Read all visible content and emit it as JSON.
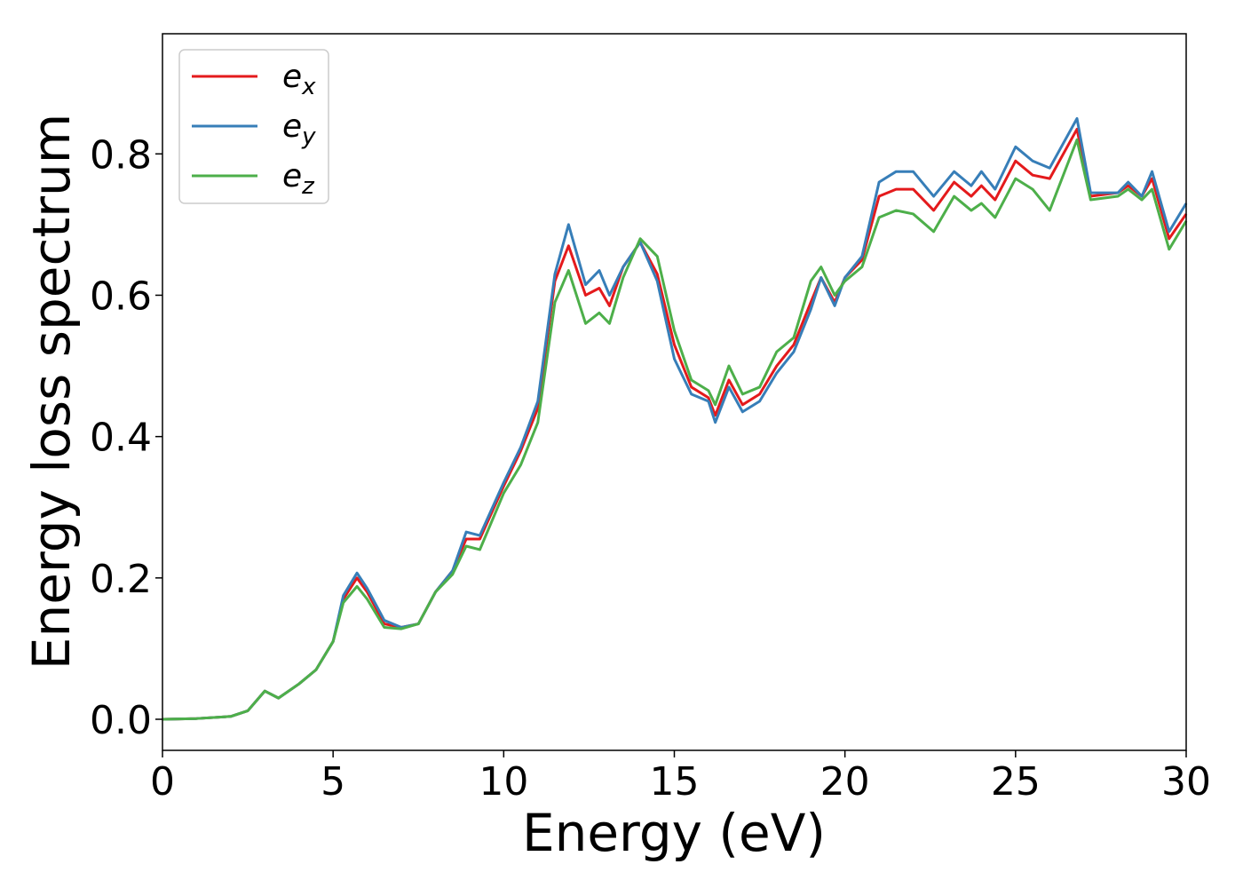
{
  "chart_data": {
    "type": "line",
    "xlabel": "Energy (eV)",
    "ylabel": "Energy loss spectrum",
    "x": [
      0,
      1,
      2,
      2.5,
      3,
      3.4,
      4,
      4.5,
      5,
      5.3,
      5.7,
      6,
      6.5,
      7,
      7.5,
      8,
      8.5,
      8.9,
      9.3,
      10,
      10.5,
      11,
      11.5,
      11.9,
      12.4,
      12.8,
      13.1,
      13.5,
      14,
      14.5,
      15,
      15.5,
      16,
      16.2,
      16.6,
      17,
      17.5,
      18,
      18.5,
      19,
      19.3,
      19.7,
      20,
      20.5,
      21,
      21.5,
      22,
      22.6,
      23.2,
      23.7,
      24,
      24.4,
      25,
      25.5,
      26,
      26.8,
      27.2,
      28,
      28.3,
      28.7,
      29,
      29.5,
      30
    ],
    "series": [
      {
        "name": "ex",
        "color": "#e41a1c",
        "values": [
          0,
          0.001,
          0.004,
          0.012,
          0.04,
          0.03,
          0.05,
          0.07,
          0.11,
          0.17,
          0.2,
          0.18,
          0.135,
          0.13,
          0.135,
          0.18,
          0.21,
          0.255,
          0.255,
          0.33,
          0.38,
          0.44,
          0.62,
          0.67,
          0.6,
          0.61,
          0.585,
          0.64,
          0.675,
          0.63,
          0.53,
          0.47,
          0.455,
          0.43,
          0.48,
          0.445,
          0.46,
          0.5,
          0.53,
          0.59,
          0.625,
          0.59,
          0.625,
          0.65,
          0.74,
          0.75,
          0.75,
          0.72,
          0.76,
          0.74,
          0.755,
          0.735,
          0.79,
          0.77,
          0.765,
          0.835,
          0.74,
          0.745,
          0.755,
          0.74,
          0.765,
          0.68,
          0.715
        ]
      },
      {
        "name": "ey",
        "color": "#377eb8",
        "values": [
          0,
          0.001,
          0.004,
          0.012,
          0.04,
          0.03,
          0.05,
          0.07,
          0.11,
          0.175,
          0.207,
          0.185,
          0.14,
          0.13,
          0.135,
          0.18,
          0.21,
          0.265,
          0.26,
          0.335,
          0.385,
          0.45,
          0.63,
          0.7,
          0.615,
          0.635,
          0.6,
          0.64,
          0.675,
          0.62,
          0.51,
          0.46,
          0.45,
          0.42,
          0.47,
          0.435,
          0.45,
          0.49,
          0.52,
          0.58,
          0.625,
          0.585,
          0.625,
          0.655,
          0.76,
          0.775,
          0.775,
          0.74,
          0.775,
          0.755,
          0.775,
          0.75,
          0.81,
          0.79,
          0.78,
          0.85,
          0.745,
          0.745,
          0.76,
          0.74,
          0.775,
          0.69,
          0.73
        ]
      },
      {
        "name": "ez",
        "color": "#4daf4a",
        "values": [
          0,
          0.001,
          0.004,
          0.012,
          0.04,
          0.03,
          0.05,
          0.07,
          0.11,
          0.165,
          0.188,
          0.17,
          0.13,
          0.128,
          0.135,
          0.18,
          0.205,
          0.245,
          0.24,
          0.32,
          0.36,
          0.42,
          0.59,
          0.635,
          0.56,
          0.575,
          0.56,
          0.625,
          0.68,
          0.655,
          0.55,
          0.48,
          0.465,
          0.445,
          0.5,
          0.46,
          0.47,
          0.52,
          0.54,
          0.62,
          0.64,
          0.6,
          0.62,
          0.64,
          0.71,
          0.72,
          0.715,
          0.69,
          0.74,
          0.72,
          0.73,
          0.71,
          0.765,
          0.75,
          0.72,
          0.82,
          0.735,
          0.74,
          0.75,
          0.735,
          0.75,
          0.665,
          0.705
        ]
      }
    ],
    "xlim": [
      0,
      30
    ],
    "xticks": [
      0,
      5,
      10,
      15,
      20,
      25,
      30
    ],
    "ylim": [
      -0.044,
      0.97
    ],
    "yticks": [
      {
        "value": 0,
        "label": "0.0"
      },
      0.2,
      0.4,
      0.6,
      0.8
    ],
    "legend": "upper left",
    "grid": false
  }
}
